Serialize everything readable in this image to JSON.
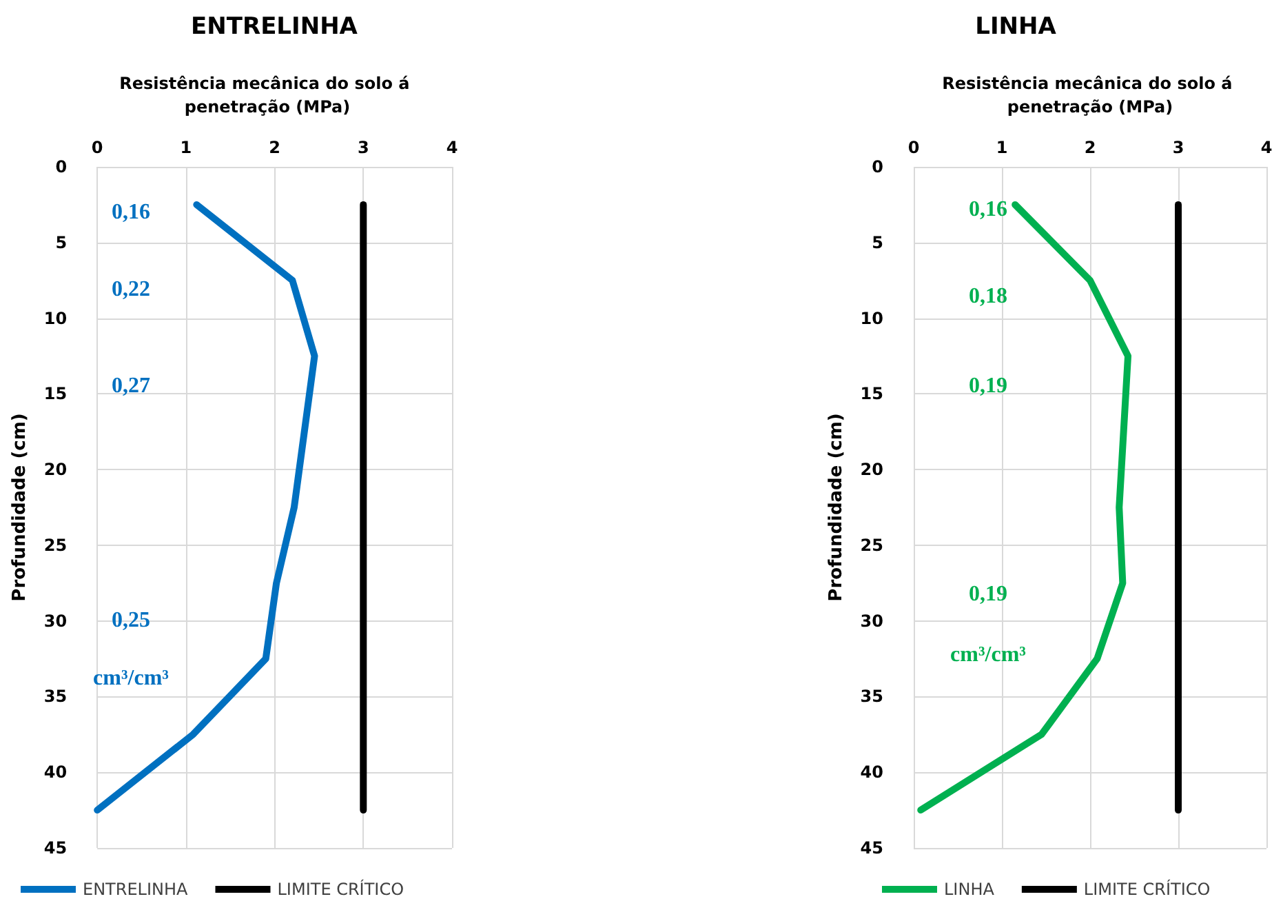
{
  "chart_data": [
    {
      "type": "line",
      "title": "ENTRELINHA",
      "xlabel": "Resistência mecânica do solo á penetração (MPa)",
      "ylabel": "Profundidade (cm)",
      "xlim": [
        0,
        4
      ],
      "xticks": [
        0,
        1,
        2,
        3,
        4
      ],
      "ylim": [
        45,
        0
      ],
      "yticks": [
        0,
        5,
        10,
        15,
        20,
        25,
        30,
        35,
        40,
        45
      ],
      "grid": true,
      "legend": "bottom",
      "marker": "none",
      "line_style": "solid",
      "series": [
        {
          "name": "ENTRELINHA",
          "color": "#0070c0",
          "x": [
            1.12,
            2.2,
            2.45,
            2.22,
            2.02,
            1.9,
            1.08,
            0
          ],
          "values": [
            2.5,
            7.5,
            12.5,
            22.5,
            27.5,
            32.5,
            37.5,
            42.5
          ]
        },
        {
          "name": "LIMITE CRÍTICO",
          "color": "#000000",
          "x": [
            3,
            3
          ],
          "values": [
            2.5,
            42.5
          ]
        }
      ],
      "annotations": [
        "0,16",
        "0,22",
        "0,27",
        "0,25",
        "cm³/cm³"
      ]
    },
    {
      "type": "line",
      "title": "LINHA",
      "xlabel": "Resistência mecânica do solo á penetração (MPa)",
      "ylabel": "Profundidade (cm)",
      "xlim": [
        0,
        4
      ],
      "xticks": [
        0,
        1,
        2,
        3,
        4
      ],
      "ylim": [
        45,
        0
      ],
      "yticks": [
        0,
        5,
        10,
        15,
        20,
        25,
        30,
        35,
        40,
        45
      ],
      "grid": true,
      "legend": "bottom",
      "marker": "none",
      "line_style": "solid",
      "series": [
        {
          "name": "LINHA",
          "color": "#00b050",
          "x": [
            1.15,
            2.0,
            2.43,
            2.33,
            2.37,
            2.08,
            1.45,
            0.08
          ],
          "values": [
            2.5,
            7.5,
            12.5,
            22.5,
            27.5,
            32.5,
            37.5,
            42.5
          ]
        },
        {
          "name": "LIMITE CRÍTICO",
          "color": "#000000",
          "x": [
            3,
            3
          ],
          "values": [
            2.5,
            42.5
          ]
        }
      ],
      "annotations": [
        "0,16",
        "0,18",
        "0,19",
        "0,19",
        "cm³/cm³"
      ]
    }
  ]
}
